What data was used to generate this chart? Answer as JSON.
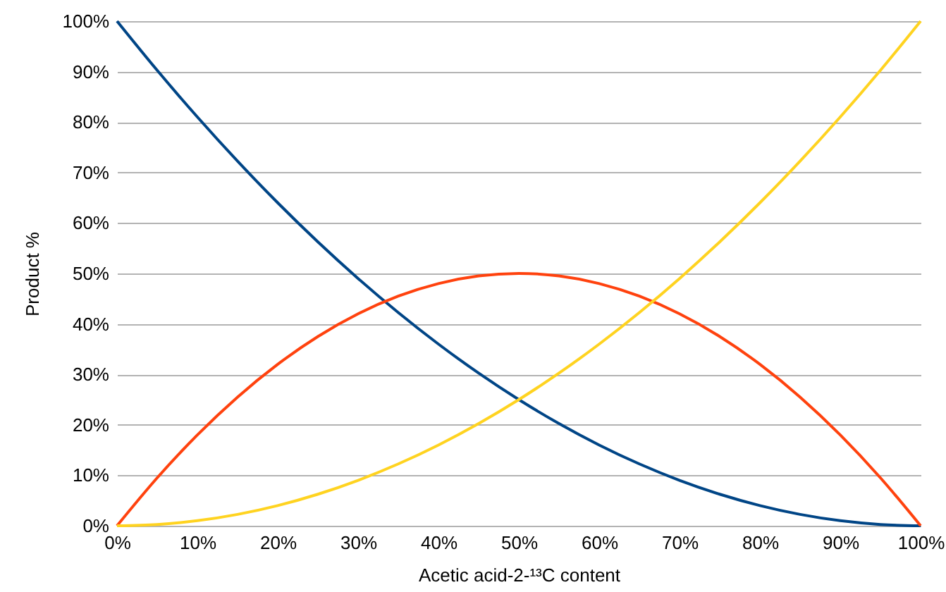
{
  "chart_data": {
    "type": "line",
    "xlabel": "Acetic acid-2-¹³C content",
    "ylabel": "Product %",
    "x": [
      0,
      5,
      10,
      15,
      20,
      25,
      30,
      35,
      40,
      45,
      50,
      55,
      60,
      65,
      70,
      75,
      80,
      85,
      90,
      95,
      100
    ],
    "series": [
      {
        "color": "#004586",
        "values": [
          100,
          90.25,
          81,
          72.25,
          64,
          56.25,
          49,
          42.25,
          36,
          30.25,
          25,
          20.25,
          16,
          12.25,
          9,
          6.25,
          4,
          2.25,
          1,
          0.25,
          0
        ]
      },
      {
        "color": "#ff420e",
        "values": [
          0,
          9.5,
          18,
          25.5,
          32,
          37.5,
          42,
          45.5,
          48,
          49.5,
          50,
          49.5,
          48,
          45.5,
          42,
          37.5,
          32,
          25.5,
          18,
          9.5,
          0
        ]
      },
      {
        "color": "#ffd320",
        "values": [
          0,
          0.25,
          1,
          2.25,
          4,
          6.25,
          9,
          12.25,
          16,
          20.25,
          25,
          30.25,
          36,
          42.25,
          49,
          56.25,
          64,
          72.25,
          81,
          90.25,
          100
        ]
      }
    ],
    "xlim": [
      0,
      100
    ],
    "ylim": [
      0,
      100
    ],
    "xticks": [
      {
        "value": 0,
        "label": "0%"
      },
      {
        "value": 10,
        "label": "10%"
      },
      {
        "value": 20,
        "label": "20%"
      },
      {
        "value": 30,
        "label": "30%"
      },
      {
        "value": 40,
        "label": "40%"
      },
      {
        "value": 50,
        "label": "50%"
      },
      {
        "value": 60,
        "label": "60%"
      },
      {
        "value": 70,
        "label": "70%"
      },
      {
        "value": 80,
        "label": "80%"
      },
      {
        "value": 90,
        "label": "90%"
      },
      {
        "value": 100,
        "label": "100%"
      }
    ],
    "yticks": [
      {
        "value": 0,
        "label": "0%"
      },
      {
        "value": 10,
        "label": "10%"
      },
      {
        "value": 20,
        "label": "20%"
      },
      {
        "value": 30,
        "label": "30%"
      },
      {
        "value": 40,
        "label": "40%"
      },
      {
        "value": 50,
        "label": "50%"
      },
      {
        "value": 60,
        "label": "60%"
      },
      {
        "value": 70,
        "label": "70%"
      },
      {
        "value": 80,
        "label": "80%"
      },
      {
        "value": 90,
        "label": "90%"
      },
      {
        "value": 100,
        "label": "100%"
      }
    ],
    "grid": "y",
    "marker": "none",
    "line_style": "solid"
  }
}
